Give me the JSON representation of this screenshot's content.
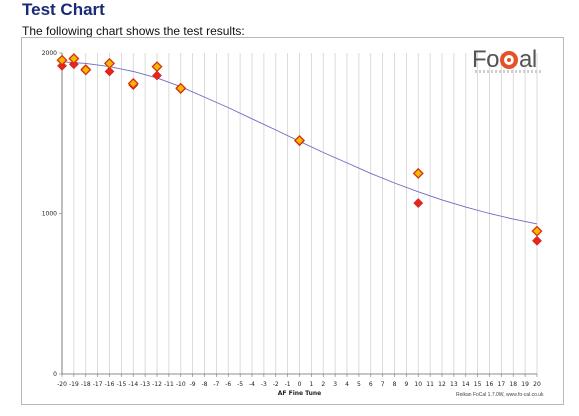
{
  "page": {
    "title": "Test Chart",
    "intro": "The following chart shows the test results:"
  },
  "logo": {
    "text_left": "Fo",
    "text_right": "al"
  },
  "credit": "Reikan  FoCal 1.7.0W,  www.fo-cal.co.uk",
  "colors": {
    "curve": "#6b6bc4",
    "marker_red": "#e8251c",
    "marker_orange_fill": "#f7b800",
    "marker_orange_edge": "#d4330f",
    "grid": "#d2d2d2",
    "title": "#1b2a78"
  },
  "chart_data": {
    "type": "scatter",
    "title": "",
    "xlabel": "AF Fine Tune",
    "ylabel": "",
    "xlim": [
      -20,
      20
    ],
    "ylim": [
      0,
      2000
    ],
    "x_ticks": [
      -20,
      -19,
      -18,
      -17,
      -16,
      -15,
      -14,
      -13,
      -12,
      -11,
      -10,
      -9,
      -8,
      -7,
      -6,
      -5,
      -4,
      -3,
      -2,
      -1,
      0,
      1,
      2,
      3,
      4,
      5,
      6,
      7,
      8,
      9,
      10,
      11,
      12,
      13,
      14,
      15,
      16,
      17,
      18,
      19,
      20
    ],
    "y_ticks": [
      0,
      1000,
      2000
    ],
    "grid": true,
    "series": [
      {
        "marker": "diamond-red",
        "points": [
          [
            -20,
            1920
          ],
          [
            -19,
            1930
          ],
          [
            -18,
            1900
          ],
          [
            -16,
            1885
          ],
          [
            -14,
            1800
          ],
          [
            -12,
            1860
          ],
          [
            -10,
            1775
          ],
          [
            0,
            1450
          ],
          [
            10,
            1065
          ],
          [
            20,
            830
          ]
        ]
      },
      {
        "marker": "diamond-orange",
        "points": [
          [
            -20,
            1955
          ],
          [
            -19,
            1965
          ],
          [
            -18,
            1895
          ],
          [
            -16,
            1935
          ],
          [
            -14,
            1810
          ],
          [
            -12,
            1915
          ],
          [
            -10,
            1780
          ],
          [
            0,
            1455
          ],
          [
            10,
            1250
          ],
          [
            20,
            890
          ]
        ]
      }
    ],
    "fit_curve": {
      "points": [
        [
          -20,
          1945
        ],
        [
          -18,
          1935
        ],
        [
          -16,
          1915
        ],
        [
          -14,
          1885
        ],
        [
          -12,
          1845
        ],
        [
          -10,
          1790
        ],
        [
          -8,
          1725
        ],
        [
          -6,
          1660
        ],
        [
          -4,
          1590
        ],
        [
          -2,
          1520
        ],
        [
          0,
          1450
        ],
        [
          2,
          1380
        ],
        [
          4,
          1315
        ],
        [
          6,
          1250
        ],
        [
          8,
          1190
        ],
        [
          10,
          1135
        ],
        [
          12,
          1085
        ],
        [
          14,
          1040
        ],
        [
          16,
          1000
        ],
        [
          18,
          965
        ],
        [
          20,
          935
        ]
      ]
    }
  }
}
